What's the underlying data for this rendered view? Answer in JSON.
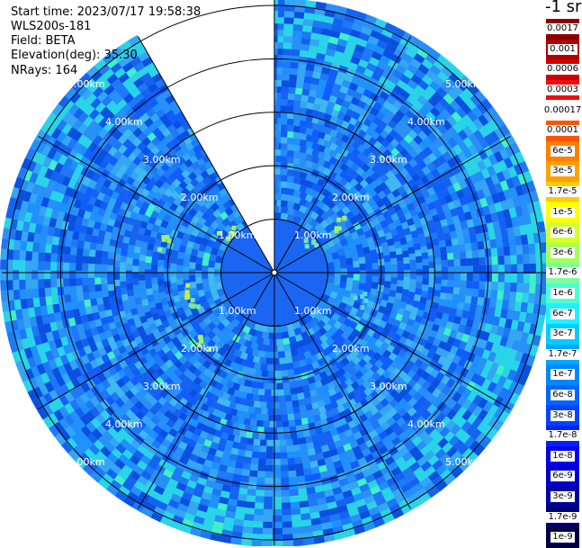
{
  "header": {
    "start_time": "Start time: 2023/07/17 19:58:38",
    "instrument": "WLS200s-181",
    "field": "Field: BETA",
    "elevation": "Elevation(deg): 35.30",
    "nrays": "NRays: 164"
  },
  "colorbar": {
    "unit": "-1 sr",
    "labels": [
      "0.0017",
      "0.001",
      "0.0006",
      "0.0003",
      "0.00017",
      "0.0001",
      "6e-5",
      "3e-5",
      "1.7e-5",
      "1e-5",
      "6e-6",
      "3e-6",
      "1.7e-6",
      "1e-6",
      "6e-7",
      "3e-7",
      "1.7e-7",
      "1e-7",
      "6e-8",
      "3e-8",
      "1.7e-8",
      "1e-8",
      "6e-9",
      "3e-9",
      "1.7e-9",
      "1e-9"
    ],
    "colors": [
      "#8b0000",
      "#b00000",
      "#d00000",
      "#ee1010",
      "#ffffff",
      "#ff5500",
      "#ff8000",
      "#ffa000",
      "#ffcc00",
      "#ffff00",
      "#d4ff2a",
      "#a5ff5a",
      "#7dffa0",
      "#4dffd0",
      "#20f0ff",
      "#00ccff",
      "#00a8ff",
      "#0088ff",
      "#0066ff",
      "#0044ff",
      "#0022ff",
      "#0000ee",
      "#0000c8",
      "#00009a",
      "#00006e",
      "#000040"
    ]
  },
  "ppi": {
    "ring_labels": [
      "1.00km",
      "2.00km",
      "3.00km",
      "4.00km",
      "5.00km"
    ],
    "max_range_km": 5,
    "ray_angles_deg": [
      0,
      30,
      60,
      90,
      120,
      150,
      180,
      210,
      240,
      270,
      300,
      330
    ],
    "blanked_sector_deg": [
      330,
      360
    ]
  }
}
